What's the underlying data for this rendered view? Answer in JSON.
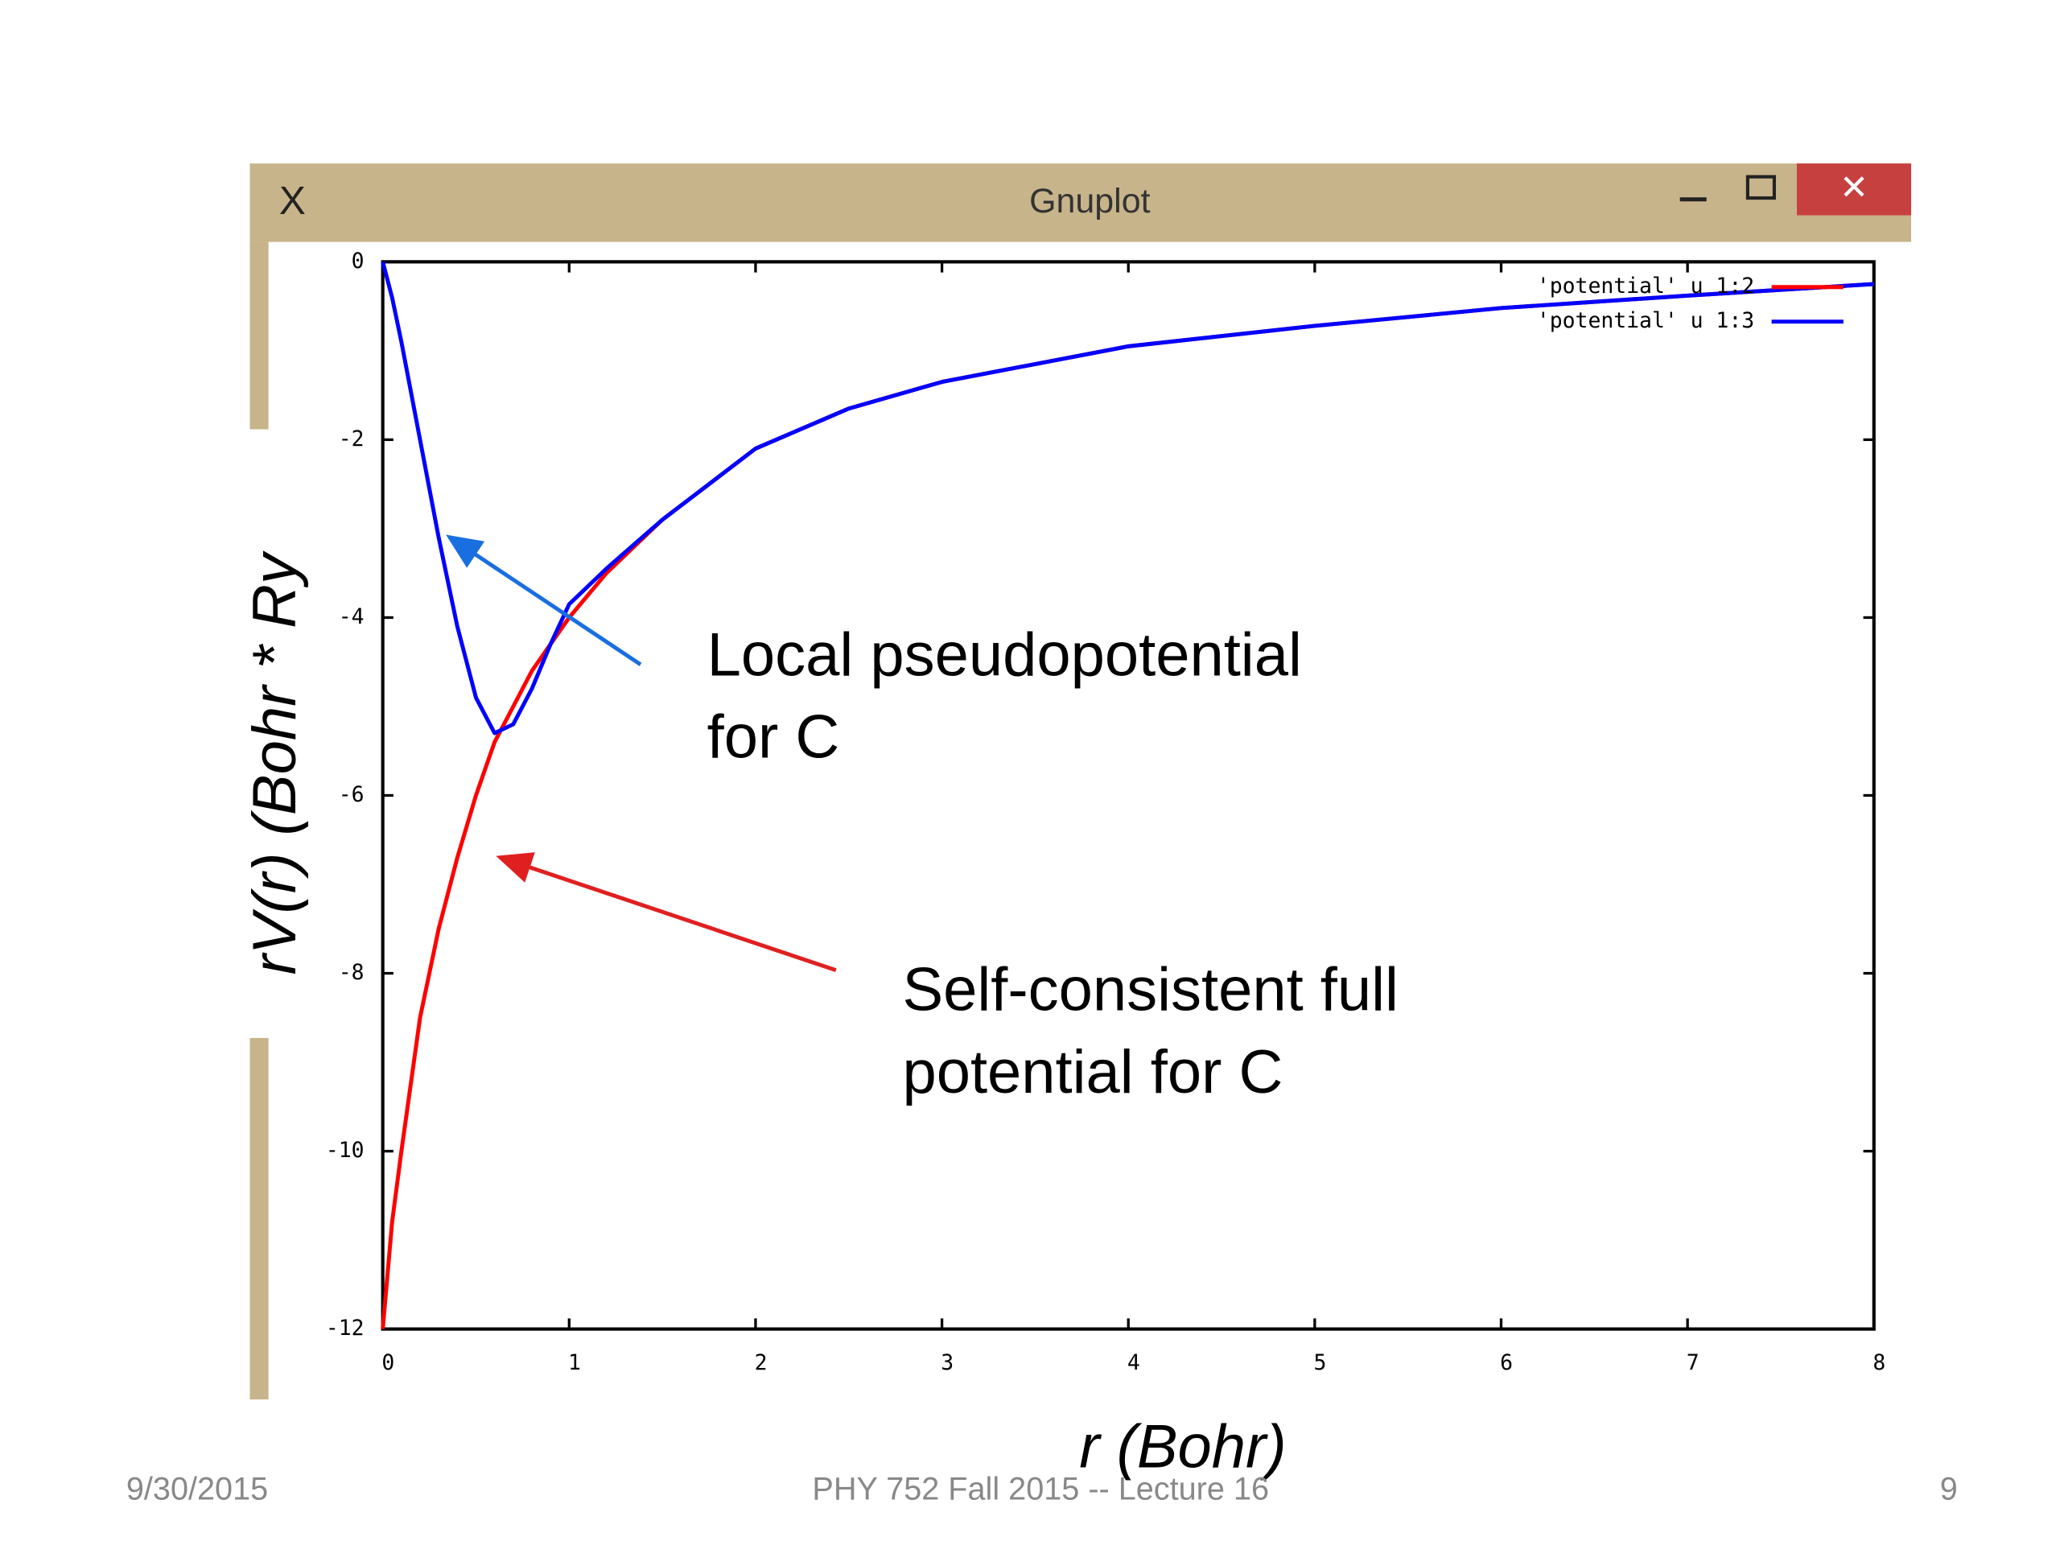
{
  "window_title": "Gnuplot",
  "chart_data": {
    "type": "line",
    "x": [
      0,
      0.05,
      0.1,
      0.2,
      0.3,
      0.4,
      0.5,
      0.6,
      0.7,
      0.8,
      0.9,
      1,
      1.2,
      1.5,
      2,
      2.5,
      3,
      4,
      5,
      6,
      7,
      8
    ],
    "series": [
      {
        "name": "'potential' u 1:2",
        "color": "#ff0000",
        "values": [
          -12,
          -10.8,
          -10,
          -8.5,
          -7.5,
          -6.7,
          -6.0,
          -5.4,
          -5.0,
          -4.6,
          -4.3,
          -4.0,
          -3.5,
          -2.9,
          -2.1,
          -1.65,
          -1.35,
          -0.95,
          -0.72,
          -0.52,
          -0.38,
          -0.25
        ]
      },
      {
        "name": "'potential' u 1:3",
        "color": "#0000ff",
        "values": [
          0,
          -0.4,
          -0.9,
          -2.0,
          -3.1,
          -4.1,
          -4.9,
          -5.3,
          -5.2,
          -4.8,
          -4.3,
          -3.85,
          -3.45,
          -2.9,
          -2.1,
          -1.65,
          -1.35,
          -0.95,
          -0.72,
          -0.52,
          -0.38,
          -0.25
        ]
      }
    ],
    "xlim": [
      0,
      8
    ],
    "xticks": [
      0,
      1,
      2,
      3,
      4,
      5,
      6,
      7,
      8
    ],
    "ylim": [
      -12,
      0
    ],
    "yticks": [
      0,
      -2,
      -4,
      -6,
      -8,
      -10,
      -12
    ],
    "x_label": "r (Bohr)",
    "y_label": "rV(r)  (Bohr * Ry",
    "annotations": [
      {
        "lines": [
          "Local pseudopotential",
          "for C"
        ]
      },
      {
        "lines": [
          "Self-consistent full",
          "potential for C"
        ]
      }
    ]
  },
  "footer": {
    "date": "9/30/2015",
    "course": "PHY 752  Fall 2015 -- Lecture 16",
    "page": "9"
  }
}
